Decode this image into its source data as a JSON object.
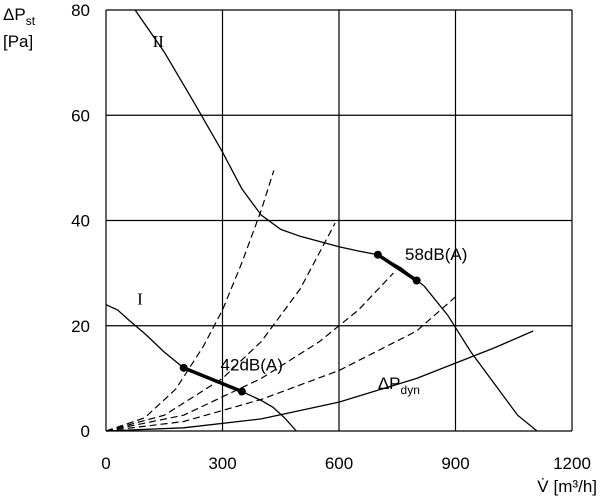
{
  "chart_data": {
    "type": "line",
    "xlabel": {
      "symbol": "V̇",
      "unit": "[m³/h]"
    },
    "ylabel": {
      "symbol_main": "ΔP",
      "symbol_sub": "st",
      "unit": "[Pa]"
    },
    "xlim": [
      0,
      1200
    ],
    "ylim": [
      0,
      80
    ],
    "xticks": [
      0,
      300,
      600,
      900,
      1200
    ],
    "yticks": [
      0,
      20,
      40,
      60,
      80
    ],
    "grid": true,
    "series": [
      {
        "name": "II",
        "style": "solid",
        "points": [
          [
            75,
            80
          ],
          [
            150,
            72
          ],
          [
            230,
            62
          ],
          [
            300,
            53
          ],
          [
            350,
            46
          ],
          [
            400,
            41
          ],
          [
            450,
            38.3
          ],
          [
            500,
            37
          ],
          [
            550,
            36
          ],
          [
            600,
            35
          ],
          [
            650,
            34.2
          ],
          [
            700,
            33.5
          ],
          [
            760,
            31
          ],
          [
            820,
            27.5
          ],
          [
            880,
            22
          ],
          [
            940,
            15
          ],
          [
            1000,
            9
          ],
          [
            1060,
            3
          ],
          [
            1110,
            0
          ]
        ]
      },
      {
        "name": "I",
        "style": "solid",
        "points": [
          [
            0,
            24
          ],
          [
            30,
            23
          ],
          [
            60,
            21
          ],
          [
            100,
            18.5
          ],
          [
            150,
            15
          ],
          [
            200,
            12
          ],
          [
            250,
            10.3
          ],
          [
            300,
            9
          ],
          [
            350,
            7.5
          ],
          [
            400,
            5.8
          ],
          [
            430,
            4.5
          ],
          [
            460,
            2.5
          ],
          [
            490,
            0
          ]
        ]
      },
      {
        "name": "ΔPdyn",
        "style": "solid",
        "points": [
          [
            0,
            0
          ],
          [
            200,
            0.6
          ],
          [
            400,
            2.3
          ],
          [
            600,
            5.5
          ],
          [
            800,
            10
          ],
          [
            1000,
            15.8
          ],
          [
            1100,
            19
          ]
        ]
      },
      {
        "name": "",
        "style": "dashed",
        "points": [
          [
            0,
            0
          ],
          [
            100,
            2.5
          ],
          [
            180,
            8
          ],
          [
            250,
            16
          ],
          [
            300,
            23
          ],
          [
            350,
            32
          ],
          [
            400,
            42
          ],
          [
            432,
            49.5
          ]
        ]
      },
      {
        "name": "",
        "style": "dashed",
        "points": [
          [
            0,
            0
          ],
          [
            150,
            3
          ],
          [
            300,
            10
          ],
          [
            400,
            17
          ],
          [
            500,
            27
          ],
          [
            590,
            39.5
          ]
        ]
      },
      {
        "name": "",
        "style": "dashed",
        "points": [
          [
            0,
            0
          ],
          [
            200,
            3
          ],
          [
            400,
            10
          ],
          [
            550,
            17
          ],
          [
            650,
            23
          ],
          [
            740,
            30
          ]
        ]
      },
      {
        "name": "",
        "style": "dashed",
        "points": [
          [
            0,
            0
          ],
          [
            200,
            1.8
          ],
          [
            400,
            6
          ],
          [
            600,
            11.5
          ],
          [
            800,
            19
          ],
          [
            900,
            25.5
          ]
        ]
      }
    ],
    "highlights": [
      {
        "label": "58dB(A)",
        "points": [
          [
            700,
            33.5
          ],
          [
            800,
            28.6
          ]
        ]
      },
      {
        "label": "42dB(A)",
        "points": [
          [
            200,
            12
          ],
          [
            350,
            7.5
          ]
        ]
      }
    ],
    "series_labels": [
      {
        "text": "II",
        "x": 120,
        "y": 73
      },
      {
        "text": "I",
        "x": 80,
        "y": 24
      },
      {
        "text": "ΔP",
        "sub": "dyn",
        "x": 700,
        "y": 8
      }
    ],
    "annotations": [
      {
        "text": "58dB(A)",
        "x": 770,
        "y": 32.5
      },
      {
        "text": "42dB(A)",
        "x": 295,
        "y": 11.5
      }
    ]
  }
}
